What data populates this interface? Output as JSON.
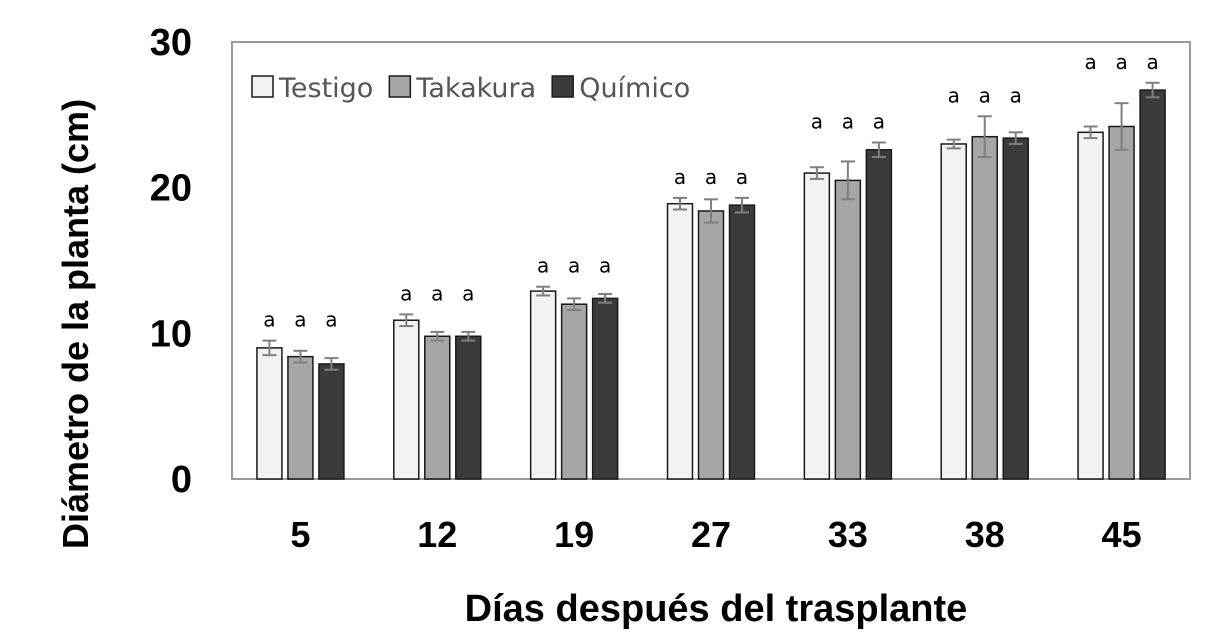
{
  "chart_data": {
    "type": "bar",
    "title": "",
    "xlabel": "Días después del trasplante",
    "ylabel": "Diámetro de la planta (cm)",
    "ylim": [
      0,
      30
    ],
    "yticks": [
      0,
      10,
      20,
      30
    ],
    "categories": [
      "5",
      "12",
      "19",
      "27",
      "33",
      "38",
      "45"
    ],
    "series": [
      {
        "name": "Testigo",
        "color": "#f2f2f2",
        "values": [
          9.0,
          10.9,
          12.9,
          18.9,
          21.0,
          23.0,
          23.8
        ],
        "errors": [
          0.5,
          0.4,
          0.3,
          0.4,
          0.4,
          0.3,
          0.4
        ],
        "labels": [
          "a",
          "a",
          "a",
          "a",
          "a",
          "a",
          "a"
        ]
      },
      {
        "name": "Takakura",
        "color": "#a6a6a6",
        "values": [
          8.4,
          9.8,
          12.0,
          18.4,
          20.5,
          23.5,
          24.2
        ],
        "errors": [
          0.4,
          0.3,
          0.4,
          0.8,
          1.3,
          1.4,
          1.6
        ],
        "labels": [
          "a",
          "a",
          "a",
          "a",
          "a",
          "a",
          "a"
        ]
      },
      {
        "name": "Químico",
        "color": "#3b3b3b",
        "values": [
          7.9,
          9.8,
          12.4,
          18.8,
          22.6,
          23.4,
          26.7
        ],
        "errors": [
          0.4,
          0.3,
          0.3,
          0.5,
          0.5,
          0.4,
          0.5
        ],
        "labels": [
          "a",
          "a",
          "a",
          "a",
          "a",
          "a",
          "a"
        ]
      }
    ],
    "grid": false,
    "legend_position": "top-left"
  }
}
